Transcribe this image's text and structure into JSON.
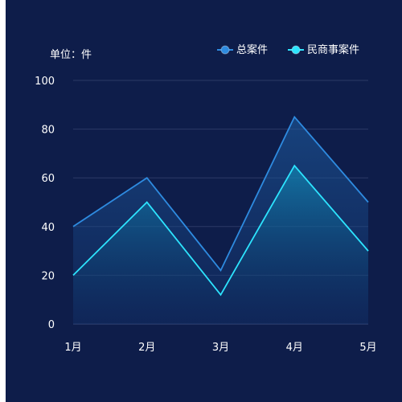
{
  "chart_data": {
    "type": "area",
    "unit_label": "单位：件",
    "categories": [
      "1月",
      "2月",
      "3月",
      "4月",
      "5月"
    ],
    "ylim": [
      0,
      100
    ],
    "yticks": [
      0,
      20,
      40,
      60,
      80,
      100
    ],
    "grid": true,
    "legend_position": "top-right",
    "series": [
      {
        "name": "总案件",
        "values": [
          40,
          60,
          22,
          85,
          50
        ],
        "color": "#2e8be0"
      },
      {
        "name": "民商事案件",
        "values": [
          20,
          50,
          12,
          65,
          30
        ],
        "color": "#2de4ff"
      }
    ]
  }
}
